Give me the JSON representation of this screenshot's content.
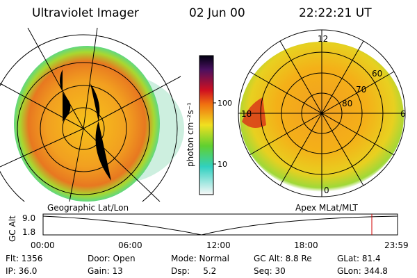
{
  "header": {
    "title": "Ultraviolet Imager",
    "date": "02 Jun 00",
    "time": "22:22:21 UT"
  },
  "colorbar": {
    "label": "photon cm⁻²s⁻¹",
    "ticks": [
      "100",
      "10"
    ]
  },
  "left_panel": {
    "caption": "Geographic Lat/Lon"
  },
  "right_panel": {
    "caption": "Apex MLat/MLT",
    "mlt_labels": [
      "12",
      "6",
      "0",
      "18"
    ],
    "mlat_labels": [
      "60",
      "70",
      "80"
    ]
  },
  "timeline": {
    "y_label": "GC Alt",
    "y_ticks": [
      "9.0",
      "1.8"
    ],
    "x_ticks": [
      "00:00",
      "06:00",
      "12:00",
      "18:00",
      "23:59"
    ]
  },
  "info": [
    "Flt: 1356",
    "IP: 36.0",
    "Door: Open",
    "Gain: 13",
    "Mode: Normal",
    "Dsp:     5.2",
    "GC Alt: 8.8 Re",
    "Seq: 30",
    "GLat: 81.4",
    "GLon: 344.8"
  ]
}
